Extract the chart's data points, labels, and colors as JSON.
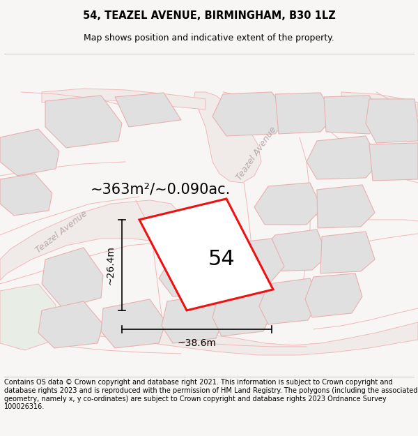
{
  "title_line1": "54, TEAZEL AVENUE, BIRMINGHAM, B30 1LZ",
  "title_line2": "Map shows position and indicative extent of the property.",
  "footer_text": "Contains OS data © Crown copyright and database right 2021. This information is subject to Crown copyright and database rights 2023 and is reproduced with the permission of HM Land Registry. The polygons (including the associated geometry, namely x, y co-ordinates) are subject to Crown copyright and database rights 2023 Ordnance Survey 100026316.",
  "area_text": "~363m²/~0.090ac.",
  "number_label": "54",
  "dim_width": "~38.6m",
  "dim_height": "~26.4m",
  "road_label_left": "Teazel Avenue",
  "road_label_right": "Teazel Avenue",
  "bg_map": "#f7f6f4",
  "plot_color": "#ee1111",
  "neighbor_fill": "#e0e0e0",
  "neighbor_stroke": "#e8b0b0",
  "road_outline": "#f0b8b8",
  "road_center": "#f7f0f0",
  "title_fontsize": 10.5,
  "subtitle_fontsize": 9,
  "footer_fontsize": 7.0,
  "area_fontsize": 15,
  "number_fontsize": 22,
  "dim_fontsize": 10,
  "road_label_color": "#b8a8a8",
  "road_label_size": 9
}
